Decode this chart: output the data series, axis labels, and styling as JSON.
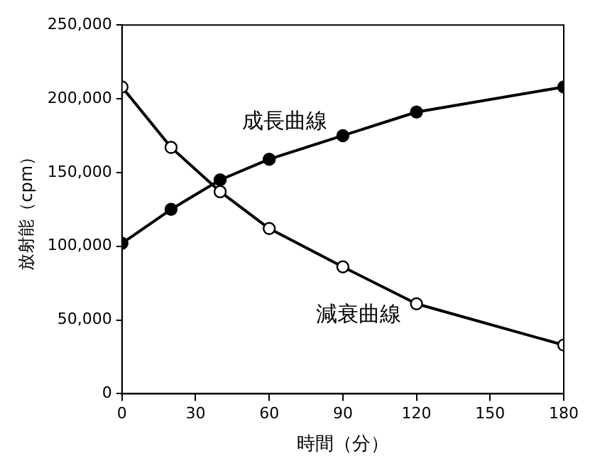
{
  "chart_data": {
    "type": "line",
    "xlabel": "時間（分）",
    "ylabel": "放射能（cpm）",
    "x": [
      0,
      20,
      40,
      60,
      90,
      120,
      180
    ],
    "series": [
      {
        "name": "成長曲線",
        "color": "#000000",
        "values": [
          102000,
          125000,
          145000,
          159000,
          175000,
          191000,
          208000
        ]
      },
      {
        "name": "減衰曲線",
        "color": "#000000",
        "values": [
          208000,
          167000,
          137000,
          112000,
          86000,
          61000,
          33000
        ]
      }
    ],
    "xlim": [
      0,
      180
    ],
    "xticks": [
      0,
      30,
      60,
      90,
      120,
      150,
      180
    ],
    "ylim": [
      0,
      250000
    ],
    "yticks": [
      0,
      {
        "value": 50000,
        "label": "50,000"
      },
      {
        "value": 100000,
        "label": "100,000"
      },
      {
        "value": 150000,
        "label": "150,000"
      },
      {
        "value": 200000,
        "label": "200,000"
      },
      {
        "value": 250000,
        "label": "250,000"
      }
    ],
    "grid": false,
    "legend": false,
    "marker": "circle",
    "line_style": "solid"
  }
}
